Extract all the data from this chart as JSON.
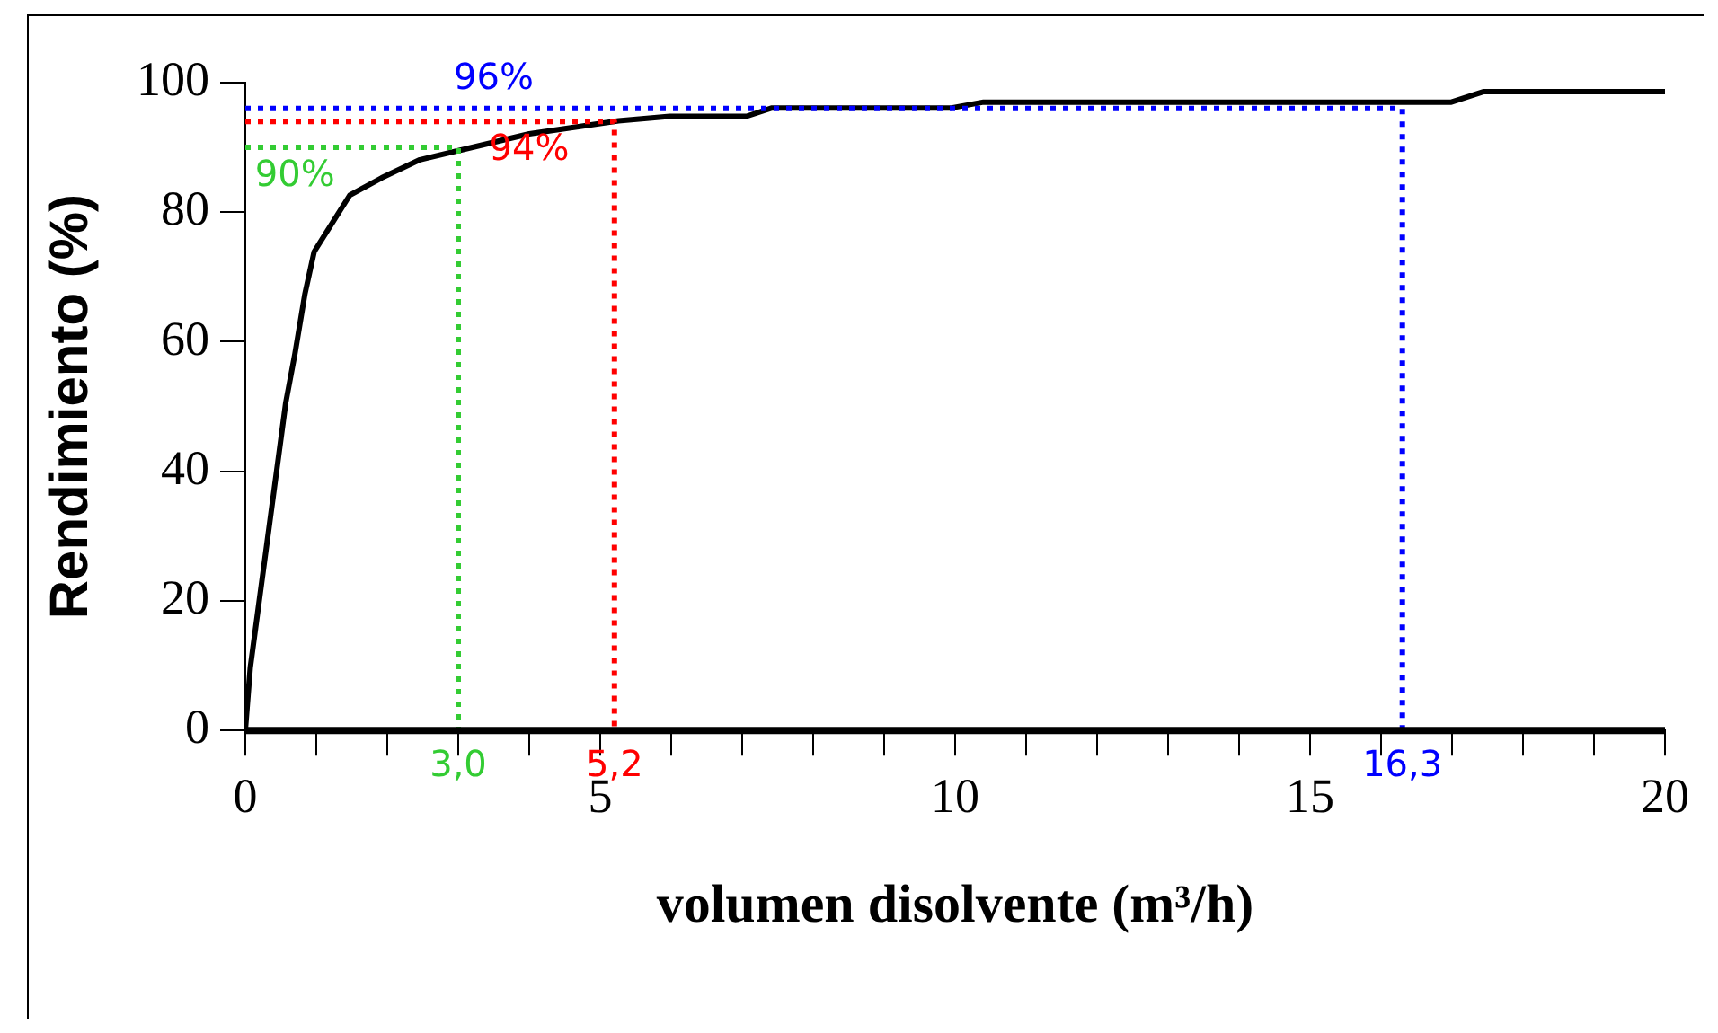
{
  "chart_data": {
    "type": "line",
    "xlabel": "volumen disolvente (m³/h)",
    "ylabel": "Rendimiento (%)",
    "xlim": [
      0,
      20
    ],
    "ylim": [
      0,
      100
    ],
    "xticks": [
      0,
      {
        "value": 1,
        "label": null
      },
      {
        "value": 2,
        "label": null
      },
      {
        "value": 3,
        "label": null
      },
      {
        "value": 4,
        "label": null
      },
      5,
      {
        "value": 6,
        "label": null
      },
      {
        "value": 7,
        "label": null
      },
      {
        "value": 8,
        "label": null
      },
      {
        "value": 9,
        "label": null
      },
      10,
      {
        "value": 11,
        "label": null
      },
      {
        "value": 12,
        "label": null
      },
      {
        "value": 13,
        "label": null
      },
      {
        "value": 14,
        "label": null
      },
      15,
      {
        "value": 16,
        "label": null
      },
      {
        "value": 17,
        "label": null
      },
      {
        "value": 18,
        "label": null
      },
      {
        "value": 19,
        "label": null
      },
      20
    ],
    "yticks": [
      0,
      20,
      40,
      60,
      80,
      100
    ],
    "grid": false,
    "legend": false,
    "marker": "none",
    "series": [
      {
        "color": "#000000",
        "line_style": "solid",
        "x": [
          0,
          0.07,
          0.57,
          0.7,
          0.84,
          0.97,
          1.47,
          1.92,
          2.46,
          3.0,
          4.0,
          5.26,
          5.98,
          7.06,
          7.42,
          9.95,
          10.4,
          16.99,
          17.44,
          20
        ],
        "values": [
          0,
          9.7,
          50.6,
          58.2,
          67.4,
          73.9,
          82.6,
          85.3,
          88.1,
          89.5,
          92.1,
          94.1,
          94.8,
          94.8,
          96.1,
          96.1,
          97,
          97,
          98.6,
          98.6
        ]
      },
      {
        "color": "#33cc33",
        "line_style": "dotted",
        "x": [
          0,
          3.0,
          3.0
        ],
        "values": [
          90,
          90,
          0
        ]
      },
      {
        "color": "#ff0000",
        "line_style": "dotted",
        "x": [
          0,
          5.2,
          5.2
        ],
        "values": [
          94,
          94,
          0
        ]
      },
      {
        "color": "#0000ff",
        "line_style": "dotted",
        "x": [
          0,
          16.3,
          16.3
        ],
        "values": [
          96,
          96,
          0
        ]
      }
    ],
    "annotations": [
      {
        "text": "90%",
        "x": 0.7,
        "y": 90
      },
      {
        "text": "94%",
        "x": 4.0,
        "y": 94
      },
      {
        "text": "96%",
        "x": 3.5,
        "y": 96
      },
      {
        "text": "3,0",
        "x": 3.0,
        "y": 0
      },
      {
        "text": "5,2",
        "x": 5.2,
        "y": 0
      },
      {
        "text": "16,3",
        "x": 16.3,
        "y": 0
      }
    ]
  }
}
